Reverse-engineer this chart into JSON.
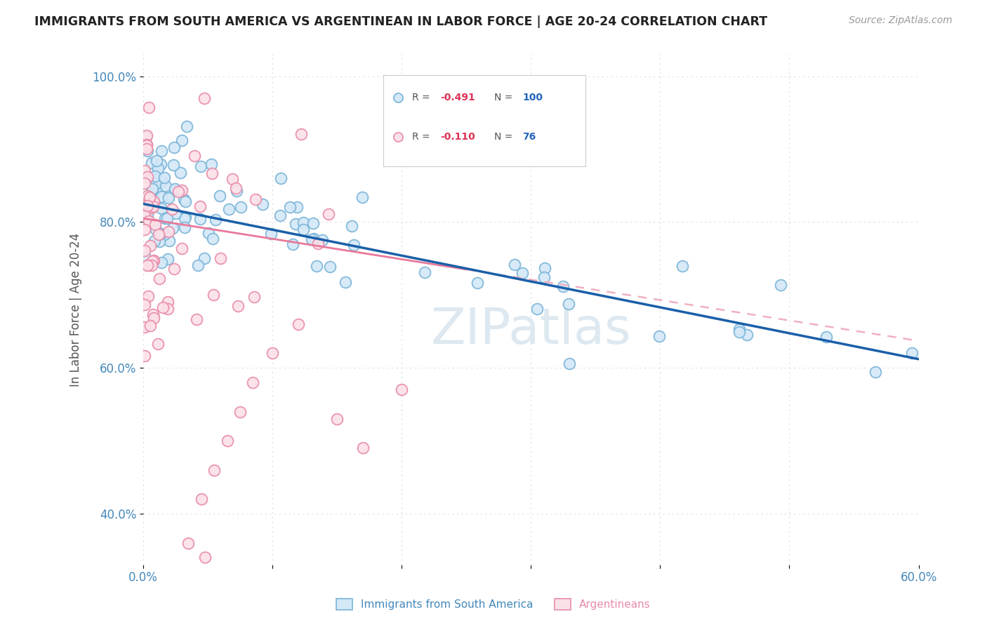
{
  "title": "IMMIGRANTS FROM SOUTH AMERICA VS ARGENTINEAN IN LABOR FORCE | AGE 20-24 CORRELATION CHART",
  "source": "Source: ZipAtlas.com",
  "ylabel_label": "In Labor Force | Age 20-24",
  "xlim": [
    0.0,
    0.6
  ],
  "ylim": [
    0.33,
    1.03
  ],
  "yticks": [
    0.4,
    0.6,
    0.8,
    1.0
  ],
  "ytick_labels": [
    "40.0%",
    "60.0%",
    "80.0%",
    "100.0%"
  ],
  "xtick_positions": [
    0.0,
    0.1,
    0.2,
    0.3,
    0.4,
    0.5,
    0.6
  ],
  "xtick_labels": [
    "0.0%",
    "",
    "",
    "",
    "",
    "",
    "60.0%"
  ],
  "blue_face": "#d4e8f8",
  "blue_edge": "#7ab4d8",
  "pink_face": "#fce0e8",
  "pink_edge": "#e88ca8",
  "blue_line": "#1a5fa8",
  "pink_line_solid": "#e8799a",
  "pink_line_dash": "#f0b0c0",
  "watermark": "ZIPatlas",
  "watermark_color": "#dde8f0",
  "legend_box_color": "#f0f0f0",
  "R1": "-0.491",
  "N1": "100",
  "R2": "-0.110",
  "N2": "76",
  "tick_color": "#4488bb",
  "grid_color": "#dddddd",
  "title_color": "#222222",
  "source_color": "#999999",
  "ylabel_color": "#555555",
  "legend_title_color": "#555555",
  "legend_R_color": "#dd3355",
  "legend_N_color": "#2266bb"
}
